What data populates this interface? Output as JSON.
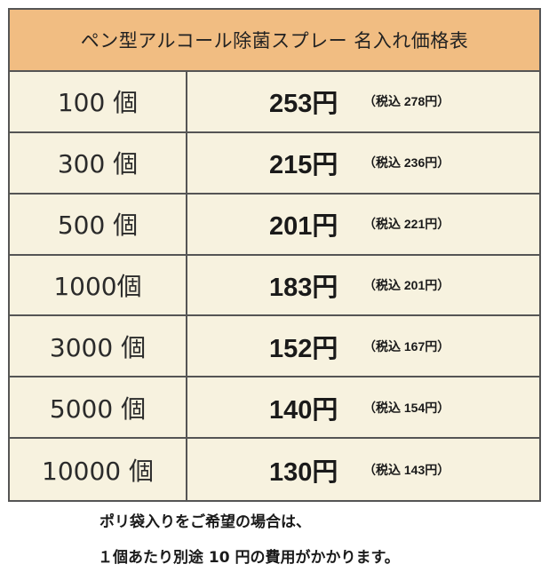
{
  "title": "ペン型アルコール除菌スプレー 名入れ価格表",
  "rows": [
    {
      "qty": "100 個",
      "price": "253円",
      "tax": "（税込 278円）"
    },
    {
      "qty": "300 個",
      "price": "215円",
      "tax": "（税込 236円）"
    },
    {
      "qty": "500 個",
      "price": "201円",
      "tax": "（税込 221円）"
    },
    {
      "qty": "1000個",
      "price": "183円",
      "tax": "（税込 201円）"
    },
    {
      "qty": "3000 個",
      "price": "152円",
      "tax": "（税込 167円）"
    },
    {
      "qty": "5000 個",
      "price": "140円",
      "tax": "（税込 154円）"
    },
    {
      "qty": "10000 個",
      "price": "130円",
      "tax": "（税込 143円）"
    }
  ],
  "note": {
    "line1": "ポリ袋入りをご希望の場合は、",
    "line2": "１個あたり別途 10 円の費用がかかります。"
  },
  "colors": {
    "header_bg": "#f1bd82",
    "cell_bg": "#f7f2df",
    "border": "#555555"
  }
}
